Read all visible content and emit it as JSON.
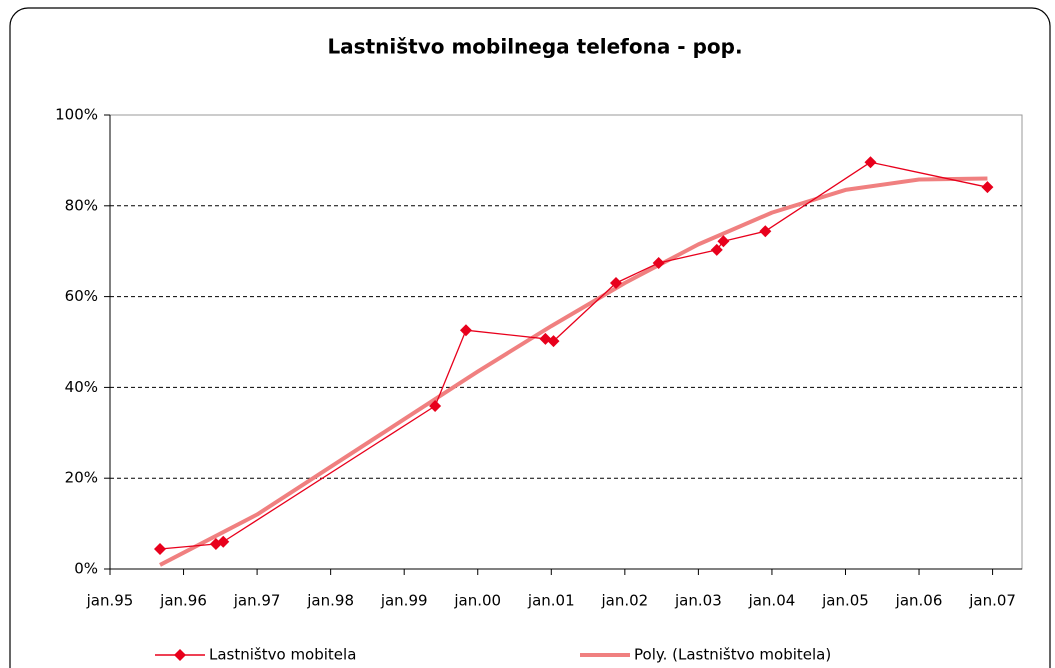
{
  "chart_data": {
    "type": "line",
    "title": "Lastništvo mobilnega telefona - pop.",
    "series": [
      {
        "name": "Lastništvo mobitela",
        "color": "#e8001c",
        "marker": "diamond",
        "x": [
          1995.68,
          1996.44,
          1996.54,
          1999.42,
          1999.84,
          2000.92,
          2001.03,
          2001.88,
          2002.46,
          2003.25,
          2003.34,
          2003.91,
          2005.34,
          2006.93
        ],
        "values": [
          4.4,
          5.5,
          6.0,
          35.9,
          52.6,
          50.7,
          50.2,
          63.0,
          67.4,
          70.3,
          72.2,
          74.4,
          89.6,
          84.1
        ]
      },
      {
        "name": "Poly. (Lastništvo mobitela)",
        "color": "#f08080",
        "x": [
          1995.68,
          1997,
          1998,
          1999,
          2000,
          2001,
          2002,
          2003,
          2004,
          2005,
          2006,
          2006.93
        ],
        "values": [
          0.9,
          12,
          22.5,
          33,
          43.5,
          53.5,
          63,
          71.5,
          78.5,
          83.5,
          85.8,
          86
        ]
      }
    ],
    "xlim": [
      1995,
      2007.4
    ],
    "xticks": [
      {
        "value": 1995,
        "label": "jan.95"
      },
      {
        "value": 1996,
        "label": "jan.96"
      },
      {
        "value": 1997,
        "label": "jan.97"
      },
      {
        "value": 1998,
        "label": "jan.98"
      },
      {
        "value": 1999,
        "label": "jan.99"
      },
      {
        "value": 2000,
        "label": "jan.00"
      },
      {
        "value": 2001,
        "label": "jan.01"
      },
      {
        "value": 2002,
        "label": "jan.02"
      },
      {
        "value": 2003,
        "label": "jan.03"
      },
      {
        "value": 2004,
        "label": "jan.04"
      },
      {
        "value": 2005,
        "label": "jan.05"
      },
      {
        "value": 2006,
        "label": "jan.06"
      },
      {
        "value": 2007,
        "label": "jan.07"
      }
    ],
    "ylim": [
      0,
      100
    ],
    "yticks": [
      {
        "value": 0,
        "label": "0%"
      },
      {
        "value": 20,
        "label": "20%"
      },
      {
        "value": 40,
        "label": "40%"
      },
      {
        "value": 60,
        "label": "60%"
      },
      {
        "value": 80,
        "label": "80%"
      },
      {
        "value": 100,
        "label": "100%"
      }
    ],
    "grid": true,
    "legend": "bottom"
  }
}
